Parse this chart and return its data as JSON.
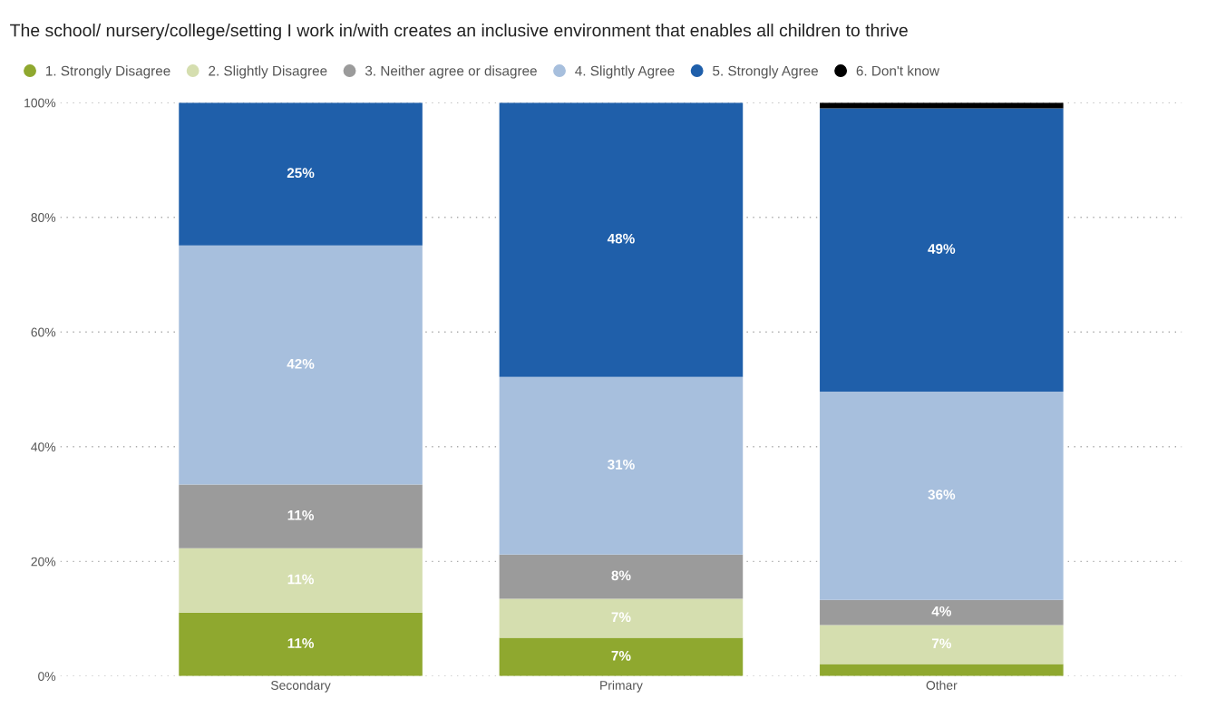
{
  "chart_data": {
    "type": "bar",
    "stacked": true,
    "title": "The school/ nursery/college/setting I work in/with creates an inclusive environment that enables all children to thrive",
    "categories": [
      "Secondary",
      "Primary",
      "Other"
    ],
    "series": [
      {
        "name": "1. Strongly Disagree",
        "color": "#8fa82f",
        "values": [
          11.1,
          6.7,
          2.1
        ],
        "value_labels": [
          "11%",
          "7%",
          null
        ]
      },
      {
        "name": "2. Slightly Disagree",
        "color": "#d5deaf",
        "values": [
          11.2,
          6.8,
          6.8
        ],
        "value_labels": [
          "11%",
          "7%",
          "7%"
        ]
      },
      {
        "name": "3. Neither agree or disagree",
        "color": "#9b9b9b",
        "values": [
          11.1,
          7.7,
          4.4
        ],
        "value_labels": [
          "11%",
          "8%",
          "4%"
        ]
      },
      {
        "name": "4. Slightly Agree",
        "color": "#a7bfdd",
        "values": [
          41.7,
          31.0,
          36.3
        ],
        "value_labels": [
          "42%",
          "31%",
          "36%"
        ]
      },
      {
        "name": "5. Strongly Agree",
        "color": "#1f5faa",
        "values": [
          24.9,
          47.8,
          49.4
        ],
        "value_labels": [
          "25%",
          "48%",
          "49%"
        ]
      },
      {
        "name": "6. Don't know",
        "color": "#000000",
        "values": [
          null,
          null,
          1.0
        ],
        "value_labels": [
          null,
          null,
          null
        ]
      }
    ],
    "ylim": [
      0,
      100
    ],
    "yticks": [
      {
        "value": 0,
        "label": "0%"
      },
      {
        "value": 20,
        "label": "20%"
      },
      {
        "value": 40,
        "label": "40%"
      },
      {
        "value": 60,
        "label": "60%"
      },
      {
        "value": 80,
        "label": "80%"
      },
      {
        "value": 100,
        "label": "100%"
      }
    ],
    "grid": "y",
    "legend": "top left",
    "marker": "circle"
  }
}
